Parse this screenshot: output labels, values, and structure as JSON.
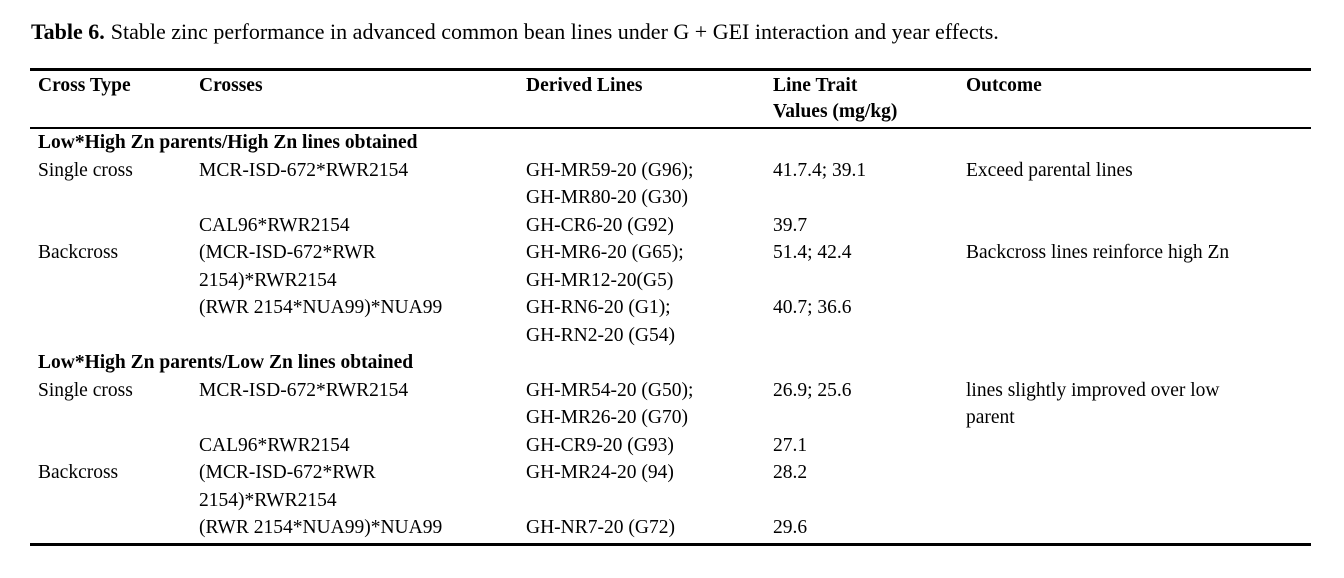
{
  "caption": {
    "label": "Table 6.",
    "text": "Stable zinc performance in advanced common bean lines under G + GEI interaction and year effects."
  },
  "table": {
    "columns": [
      "Cross Type",
      "Crosses",
      "Derived Lines",
      "Line Trait\nValues (mg/kg)",
      "Outcome"
    ],
    "sections": [
      {
        "heading": "Low*High Zn parents/High Zn lines obtained",
        "rows": [
          {
            "cross_type": "Single cross",
            "crosses": "MCR-ISD-672*RWR2154",
            "derived_lines": "GH-MR59-20 (G96);\nGH-MR80-20 (G30)",
            "trait_values": "41.7.4; 39.1",
            "outcome": "Exceed parental lines"
          },
          {
            "cross_type": "",
            "crosses": "CAL96*RWR2154",
            "derived_lines": "GH-CR6-20 (G92)",
            "trait_values": "39.7",
            "outcome": ""
          },
          {
            "cross_type": "Backcross",
            "crosses": "(MCR-ISD-672*RWR\n2154)*RWR2154",
            "derived_lines": "GH-MR6-20 (G65);\nGH-MR12-20(G5)",
            "trait_values": "51.4; 42.4",
            "outcome": "Backcross lines reinforce high Zn"
          },
          {
            "cross_type": "",
            "crosses": "(RWR 2154*NUA99)*NUA99",
            "derived_lines": "GH-RN6-20 (G1);\nGH-RN2-20 (G54)",
            "trait_values": "40.7; 36.6",
            "outcome": ""
          }
        ]
      },
      {
        "heading": "Low*High Zn parents/Low Zn lines obtained",
        "rows": [
          {
            "cross_type": "Single cross",
            "crosses": "MCR-ISD-672*RWR2154",
            "derived_lines": "GH-MR54-20 (G50);\nGH-MR26-20 (G70)",
            "trait_values": "26.9; 25.6",
            "outcome": "lines slightly improved over low\nparent"
          },
          {
            "cross_type": "",
            "crosses": "CAL96*RWR2154",
            "derived_lines": "GH-CR9-20 (G93)",
            "trait_values": "27.1",
            "outcome": ""
          },
          {
            "cross_type": "Backcross",
            "crosses": "(MCR-ISD-672*RWR\n2154)*RWR2154",
            "derived_lines": "GH-MR24-20 (94)",
            "trait_values": "28.2",
            "outcome": ""
          },
          {
            "cross_type": "",
            "crosses": "(RWR 2154*NUA99)*NUA99",
            "derived_lines": "GH-NR7-20 (G72)",
            "trait_values": "29.6",
            "outcome": ""
          }
        ]
      }
    ]
  },
  "colors": {
    "text": "#000000",
    "background": "#ffffff",
    "rule": "#000000"
  }
}
